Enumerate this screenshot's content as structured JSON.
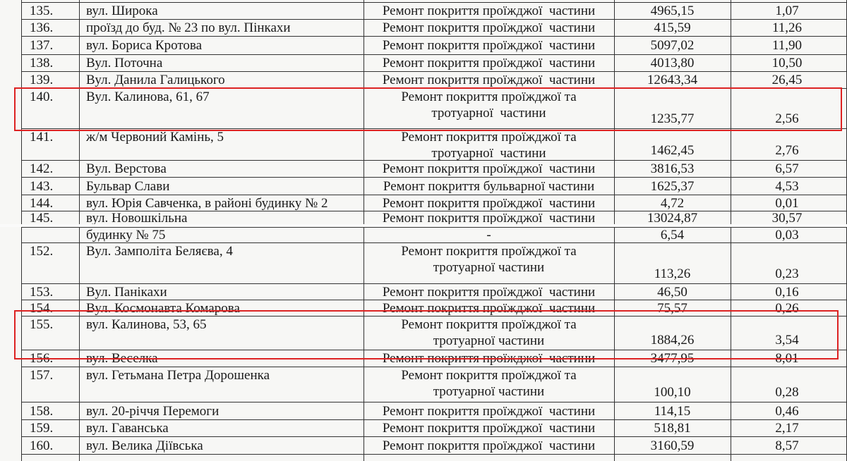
{
  "fragments": [
    {
      "rows": [
        {
          "number": "135.",
          "street": "вул. Широка",
          "work": [
            "Ремонт покриття проїжджої  частини"
          ],
          "length": "4965,15",
          "area": "1,07"
        },
        {
          "number": "136.",
          "street": "проїзд до буд. № 23 по вул. Пінкахи",
          "work": [
            "Ремонт покриття проїжджої  частини"
          ],
          "length": "415,59",
          "area": "11,26"
        },
        {
          "number": "137.",
          "street": "вул. Бориса Кротова",
          "work": [
            "Ремонт покриття проїжджої  частини"
          ],
          "length": "5097,02",
          "area": "11,90"
        },
        {
          "number": "138.",
          "street": "Вул. Поточна",
          "work": [
            "Ремонт покриття проїжджої  частини"
          ],
          "length": "4013,80",
          "area": "10,50"
        },
        {
          "number": "139.",
          "street": "Вул. Данила Галицького",
          "work": [
            "Ремонт покриття проїжджої  частини"
          ],
          "length": "12643,34",
          "area": "26,45"
        },
        {
          "number": "140.",
          "street": "Вул. Калинова, 61, 67",
          "work": [
            "Ремонт покриття проїжджої та",
            "тротуарної  частини"
          ],
          "length": "1235,77",
          "area": "2,56"
        },
        {
          "number": "141.",
          "street": "ж/м Червоний Камінь, 5",
          "work": [
            "Ремонт покриття проїжджої та",
            "тротуарної  частини"
          ],
          "length": "1462,45",
          "area": "2,76"
        },
        {
          "number": "142.",
          "street": "Вул. Верстова",
          "work": [
            "Ремонт покриття проїжджої  частини"
          ],
          "length": "3816,53",
          "area": "6,57"
        },
        {
          "number": "143.",
          "street": "Бульвар Слави",
          "work": [
            "Ремонт покриття бульварної частини"
          ],
          "length": "1625,37",
          "area": "4,53"
        },
        {
          "number": "144.",
          "street": "вул. Юрія Савченка, в районі будинку № 2",
          "work": [
            "Ремонт покриття проїжджої  частини"
          ],
          "length": "4,72",
          "area": "0,01"
        },
        {
          "number": "145.",
          "street": "вул. Новошкільна",
          "work": [
            "Ремонт покриття проїжджої  частини"
          ],
          "length": "13024,87",
          "area": "30,57"
        }
      ]
    },
    {
      "rows": [
        {
          "street": "будинку № 75",
          "work": [
            "-"
          ],
          "length": "6,54",
          "area": "0,03"
        },
        {
          "number": "152.",
          "street": "Вул. Замполіта Беляєва, 4",
          "work": [
            "Ремонт покриття проїжджої та",
            "тротуарної частини"
          ],
          "length": "113,26",
          "area": "0,23"
        },
        {
          "number": "153.",
          "street": "Вул. Панікахи",
          "work": [
            "Ремонт покриття проїжджої  частини"
          ],
          "length": "46,50",
          "area": "0,16"
        },
        {
          "number": "154.",
          "street": "Вул. Космонавта Комарова",
          "work": [
            "Ремонт покриття проїжджої  частини"
          ],
          "length": "75,57",
          "area": "0,26"
        },
        {
          "number": "155.",
          "street": "вул. Калинова, 53, 65",
          "work": [
            "Ремонт покриття проїжджої та",
            "тротуарної частини"
          ],
          "length": "1884,26",
          "area": "3,54"
        },
        {
          "number": "156.",
          "street": "вул. Веселка",
          "work": [
            "Ремонт покриття проїжджої  частини"
          ],
          "length": "3477,95",
          "area": "8,01"
        },
        {
          "number": "157.",
          "street": "вул. Гетьмана Петра Дорошенка",
          "work": [
            "Ремонт покриття проїжджої та",
            "тротуарної частини"
          ],
          "length": "100,10",
          "area": "0,28"
        },
        {
          "number": "158.",
          "street": "вул. 20-річчя Перемоги",
          "work": [
            "Ремонт покриття проїжджої  частини"
          ],
          "length": "114,15",
          "area": "0,46"
        },
        {
          "number": "159.",
          "street": "вул. Гаванська",
          "work": [
            "Ремонт покриття проїжджої  частини"
          ],
          "length": "518,81",
          "area": "2,17"
        },
        {
          "number": "160.",
          "street": "вул. Велика Діївська",
          "work": [
            "Ремонт покриття проїжджої  частини"
          ],
          "length": "3160,59",
          "area": "8,57"
        }
      ]
    }
  ]
}
